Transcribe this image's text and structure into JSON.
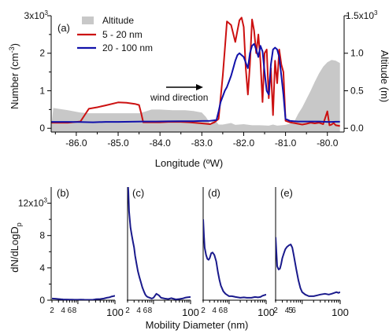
{
  "chart_data": [
    {
      "type": "line",
      "panel_label": "(a)",
      "xlabel": "Longitude (ºW)",
      "ylabel": "Number (cm",
      "ylabel_sup": "-3",
      "ylabel_end": ")",
      "y2label": "Altitude (m)",
      "xlim": [
        -86.6,
        -79.6
      ],
      "x_ticks": [
        -86.0,
        -85.0,
        -84.0,
        -83.0,
        -82.0,
        -81.0,
        -80.0
      ],
      "x_tick_labels": [
        "-86.0",
        "-85.0",
        "-84.0",
        "-83.0",
        "-82.0",
        "-81.0",
        "-80.0"
      ],
      "ylim": [
        -100,
        3000
      ],
      "y_ticks": [
        0,
        1000,
        2000,
        3000
      ],
      "y_tick_labels": [
        "0",
        "1",
        "2",
        "3x10"
      ],
      "y_top_exp": "3",
      "y2lim": [
        -50,
        1500
      ],
      "y2_ticks": [
        0,
        500,
        1000,
        1500
      ],
      "y2_tick_labels": [
        "0.0",
        "0.5",
        "1.0",
        "1.5x10"
      ],
      "y2_top_exp": "3",
      "annotation": "wind direction",
      "legend": [
        "Altitude",
        "5 - 20 nm",
        "20 - 100 nm"
      ],
      "series": [
        {
          "name": "Altitude",
          "kind": "area",
          "color": "#c8c8c8",
          "axis": "y2",
          "x": [
            -86.6,
            -86.55,
            -86.2,
            -85.9,
            -85.7,
            -85.3,
            -85.0,
            -84.7,
            -84.5,
            -84.4,
            -84.2,
            -84.0,
            -83.7,
            -83.4,
            -83.2,
            -83.0,
            -82.9,
            -82.8,
            -82.7,
            -82.6,
            -82.5,
            -82.4,
            -82.3,
            -82.2,
            -82.0,
            -81.8,
            -81.6,
            -81.4,
            -81.3,
            -81.2,
            -81.0,
            -80.9,
            -80.8,
            -80.7,
            -80.6,
            -80.5,
            -80.4,
            -80.3,
            -80.2,
            -80.1,
            -80.0,
            -79.9,
            -79.8,
            -79.7
          ],
          "values": [
            0,
            270,
            240,
            210,
            200,
            200,
            200,
            200,
            200,
            215,
            250,
            250,
            240,
            240,
            230,
            210,
            150,
            60,
            120,
            50,
            50,
            60,
            70,
            45,
            55,
            40,
            40,
            35,
            50,
            35,
            45,
            60,
            80,
            190,
            280,
            390,
            500,
            620,
            730,
            820,
            880,
            910,
            900,
            870
          ]
        },
        {
          "name": "5 - 20 nm",
          "color": "#cc1111",
          "axis": "y",
          "x": [
            -86.6,
            -86.2,
            -85.9,
            -85.8,
            -85.7,
            -85.5,
            -85.3,
            -85.0,
            -84.8,
            -84.6,
            -84.5,
            -84.45,
            -84.4,
            -84.0,
            -83.8,
            -83.5,
            -83.3,
            -83.0,
            -82.8,
            -82.7,
            -82.6,
            -82.5,
            -82.45,
            -82.4,
            -82.3,
            -82.2,
            -82.15,
            -82.1,
            -82.05,
            -82.0,
            -81.95,
            -81.9,
            -81.85,
            -81.8,
            -81.75,
            -81.7,
            -81.65,
            -81.6,
            -81.55,
            -81.5,
            -81.45,
            -81.4,
            -81.35,
            -81.3,
            -81.25,
            -81.2,
            -81.15,
            -81.1,
            -81.05,
            -81.0,
            -80.9,
            -80.8,
            -80.7,
            -80.6,
            -80.5,
            -80.4,
            -80.3,
            -80.2,
            -80.1,
            -80.0,
            -79.95,
            -79.9,
            -79.85,
            -79.8,
            -79.7
          ],
          "values": [
            150,
            150,
            180,
            350,
            520,
            560,
            610,
            690,
            680,
            650,
            620,
            400,
            160,
            160,
            170,
            170,
            160,
            130,
            110,
            160,
            250,
            1400,
            2100,
            2850,
            2750,
            2300,
            2600,
            2880,
            2950,
            2700,
            1600,
            900,
            1700,
            2900,
            2600,
            2000,
            2500,
            1800,
            700,
            2000,
            2100,
            800,
            1600,
            350,
            1800,
            1200,
            2100,
            1700,
            1500,
            200,
            160,
            140,
            120,
            100,
            120,
            150,
            130,
            150,
            110,
            450,
            80,
            100,
            140,
            80,
            60
          ]
        },
        {
          "name": "20 - 100 nm",
          "color": "#1111aa",
          "axis": "y",
          "x": [
            -86.6,
            -86.2,
            -85.9,
            -85.6,
            -85.3,
            -85.0,
            -84.7,
            -84.4,
            -84.1,
            -83.8,
            -83.5,
            -83.2,
            -83.0,
            -82.8,
            -82.65,
            -82.6,
            -82.55,
            -82.5,
            -82.45,
            -82.4,
            -82.35,
            -82.3,
            -82.25,
            -82.2,
            -82.15,
            -82.1,
            -82.05,
            -82.0,
            -81.95,
            -81.9,
            -81.85,
            -81.8,
            -81.75,
            -81.7,
            -81.65,
            -81.6,
            -81.55,
            -81.5,
            -81.45,
            -81.4,
            -81.35,
            -81.3,
            -81.25,
            -81.2,
            -81.15,
            -81.1,
            -81.05,
            -81.0,
            -80.9,
            -80.8,
            -80.7,
            -80.6,
            -80.5,
            -80.4,
            -80.3,
            -80.2,
            -80.1,
            -80.0,
            -79.9,
            -79.8,
            -79.7
          ],
          "values": [
            170,
            170,
            165,
            160,
            170,
            170,
            175,
            180,
            180,
            185,
            190,
            190,
            195,
            200,
            220,
            450,
            700,
            850,
            1000,
            1100,
            1250,
            1400,
            1600,
            1800,
            1950,
            2000,
            1950,
            1900,
            1750,
            1600,
            2000,
            2200,
            2250,
            2100,
            1900,
            2200,
            2050,
            1500,
            1000,
            900,
            1700,
            2100,
            2150,
            2100,
            1900,
            1400,
            900,
            250,
            200,
            190,
            180,
            180,
            180,
            180,
            180,
            180,
            175,
            170,
            170,
            175,
            175
          ]
        }
      ]
    },
    {
      "type": "line",
      "panel_label": "(b)",
      "x_scale": "log",
      "xlim": [
        2,
        100
      ],
      "ylim": [
        0,
        14000
      ],
      "x_ticks": [
        2,
        4,
        6,
        8,
        100
      ],
      "x_tick_labels": [
        "2",
        "4",
        "6",
        "8",
        "100"
      ],
      "color": "#1a1a8c",
      "x": [
        2,
        2.5,
        3,
        3.5,
        4,
        5,
        6,
        7,
        8,
        9,
        10,
        12,
        15,
        20,
        25,
        30,
        40,
        50,
        60,
        70,
        80,
        90,
        100
      ],
      "values": [
        200,
        180,
        150,
        120,
        100,
        90,
        80,
        70,
        60,
        60,
        60,
        80,
        60,
        50,
        50,
        120,
        150,
        200,
        300,
        350,
        450,
        500,
        550
      ]
    },
    {
      "type": "line",
      "panel_label": "(c)",
      "x_scale": "log",
      "xlim": [
        2,
        100
      ],
      "ylim": [
        0,
        14000
      ],
      "x_ticks": [
        2,
        4,
        6,
        8,
        100
      ],
      "x_tick_labels": [
        "2",
        "4",
        "6",
        "8",
        "100"
      ],
      "color": "#1a1a8c",
      "x": [
        2,
        2.1,
        2.2,
        2.4,
        2.6,
        2.8,
        3,
        3.2,
        3.5,
        3.8,
        4.2,
        4.6,
        5,
        5.5,
        6,
        6.5,
        7,
        8,
        9,
        10,
        12,
        14,
        16,
        20,
        25,
        30,
        40,
        50,
        60,
        70,
        80,
        100
      ],
      "values": [
        15000,
        13500,
        11000,
        9000,
        8000,
        7200,
        6500,
        5500,
        4500,
        3600,
        2800,
        2200,
        1600,
        1100,
        700,
        500,
        400,
        300,
        200,
        300,
        800,
        600,
        300,
        200,
        150,
        250,
        100,
        150,
        200,
        300,
        350,
        400
      ]
    },
    {
      "type": "line",
      "panel_label": "(d)",
      "x_scale": "log",
      "xlim": [
        2,
        100
      ],
      "ylim": [
        0,
        14000
      ],
      "x_ticks": [
        2,
        4,
        6,
        8,
        100
      ],
      "x_tick_labels": [
        "2",
        "4",
        "6",
        "8",
        "100"
      ],
      "color": "#1a1a8c",
      "x": [
        2,
        2.1,
        2.2,
        2.4,
        2.6,
        2.8,
        3,
        3.3,
        3.6,
        4,
        4.5,
        5,
        5.5,
        6,
        7,
        8,
        10,
        12,
        15,
        20,
        25,
        30,
        40,
        50,
        60,
        70,
        80,
        100
      ],
      "values": [
        10000,
        8000,
        6500,
        5600,
        5100,
        5000,
        5200,
        5800,
        5900,
        5600,
        4800,
        3500,
        2500,
        1800,
        1100,
        800,
        500,
        500,
        400,
        300,
        350,
        300,
        300,
        400,
        350,
        400,
        550,
        700
      ]
    },
    {
      "type": "line",
      "panel_label": "(e)",
      "x_scale": "log",
      "xlim": [
        2,
        100
      ],
      "ylim": [
        0,
        14000
      ],
      "x_ticks": [
        2,
        4,
        5,
        6,
        100
      ],
      "x_tick_labels": [
        "2",
        "4",
        "5",
        "6",
        "100"
      ],
      "shared_xlabel": "Mobility Diameter (nm)",
      "color": "#1a1a8c",
      "x": [
        2,
        2.1,
        2.2,
        2.4,
        2.6,
        2.8,
        3,
        3.3,
        3.6,
        4,
        4.5,
        5,
        5.5,
        6,
        7,
        8,
        9,
        10,
        12,
        15,
        20,
        25,
        30,
        40,
        50,
        60,
        70,
        80,
        90,
        100
      ],
      "values": [
        7800,
        6000,
        4200,
        3800,
        3900,
        4500,
        5200,
        5800,
        6300,
        6600,
        6800,
        6900,
        6500,
        5600,
        3800,
        2400,
        1500,
        1000,
        700,
        500,
        500,
        600,
        700,
        800,
        700,
        800,
        900,
        1000,
        900,
        1000
      ]
    }
  ],
  "lower_panels": {
    "ylabel": "dN/dLogD",
    "ylabel_sub": "p",
    "y_ticks": [
      0,
      4000,
      8000,
      12000
    ],
    "y_tick_labels": [
      "0",
      "4",
      "8",
      "12x10"
    ],
    "y_top_exp": "3",
    "xlabel": "Mobility Diameter (nm)"
  }
}
